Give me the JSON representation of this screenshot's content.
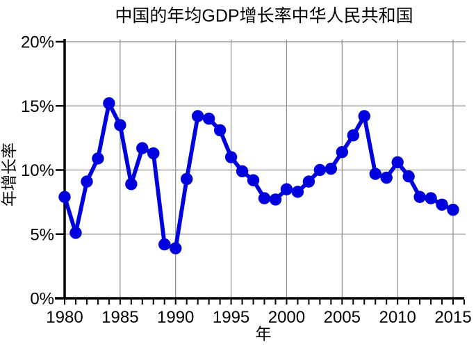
{
  "chart_data": {
    "type": "line",
    "title": "中国的年均GDP增长率中华人民共和国",
    "xlabel": "年",
    "ylabel": "年增长率",
    "x": [
      1980,
      1981,
      1982,
      1983,
      1984,
      1985,
      1986,
      1987,
      1988,
      1989,
      1990,
      1991,
      1992,
      1993,
      1994,
      1995,
      1996,
      1997,
      1998,
      1999,
      2000,
      2001,
      2002,
      2003,
      2004,
      2005,
      2006,
      2007,
      2008,
      2009,
      2010,
      2011,
      2012,
      2013,
      2014,
      2015
    ],
    "values": [
      7.9,
      5.1,
      9.1,
      10.9,
      15.2,
      13.5,
      8.9,
      11.7,
      11.3,
      4.2,
      3.9,
      9.3,
      14.2,
      14.0,
      13.1,
      11.0,
      9.9,
      9.2,
      7.8,
      7.7,
      8.5,
      8.3,
      9.1,
      10.0,
      10.1,
      11.4,
      12.7,
      14.2,
      9.7,
      9.4,
      10.6,
      9.5,
      7.9,
      7.8,
      7.3,
      6.9
    ],
    "value_unit": "%",
    "xlim": [
      1980,
      2016
    ],
    "ylim": [
      0,
      20
    ],
    "xticks_labeled": [
      1980,
      1985,
      1990,
      1995,
      2000,
      2005,
      2010,
      2015
    ],
    "xtick_minor_step_years": 1,
    "yticks": [
      0,
      5,
      10,
      15,
      20
    ],
    "ytick_labels": [
      "0%",
      "5%",
      "10%",
      "15%",
      "20%"
    ],
    "grid": true,
    "legend_position": "none",
    "marker": "circle",
    "colors": {
      "line": "#0000dd",
      "marker": "#0000dd",
      "grid": "#8c8c8c",
      "axis": "#000000",
      "text": "#000000",
      "background": "#ffffff"
    }
  }
}
